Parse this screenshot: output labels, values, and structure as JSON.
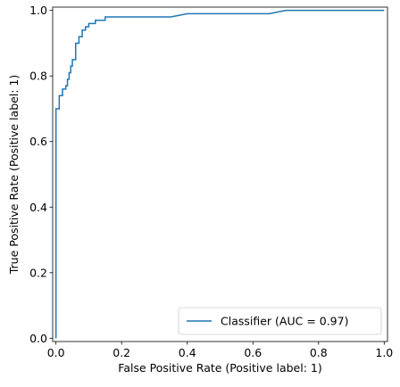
{
  "chart_data": {
    "type": "line",
    "title": "",
    "xlabel": "False Positive Rate (Positive label: 1)",
    "ylabel": "True Positive Rate (Positive label: 1)",
    "xlim": [
      -0.01,
      1.01
    ],
    "ylim": [
      -0.01,
      1.01
    ],
    "xticks": [
      "0.0",
      "0.2",
      "0.4",
      "0.6",
      "0.8",
      "1.0"
    ],
    "yticks": [
      "0.0",
      "0.2",
      "0.4",
      "0.6",
      "0.8",
      "1.0"
    ],
    "grid": false,
    "legend_position": "lower-right",
    "series": [
      {
        "name": "Classifier (AUC = 0.97)",
        "color": "#1f77b4",
        "x": [
          0.0,
          0.0,
          0.01,
          0.01,
          0.02,
          0.02,
          0.03,
          0.03,
          0.035,
          0.035,
          0.04,
          0.04,
          0.045,
          0.045,
          0.05,
          0.05,
          0.06,
          0.06,
          0.07,
          0.07,
          0.08,
          0.08,
          0.09,
          0.09,
          0.1,
          0.1,
          0.12,
          0.12,
          0.15,
          0.15,
          0.35,
          0.4,
          0.4,
          0.65,
          0.7,
          0.7,
          1.0
        ],
        "y": [
          0.0,
          0.7,
          0.7,
          0.74,
          0.74,
          0.76,
          0.76,
          0.77,
          0.77,
          0.79,
          0.79,
          0.81,
          0.81,
          0.83,
          0.83,
          0.85,
          0.85,
          0.9,
          0.9,
          0.92,
          0.92,
          0.94,
          0.94,
          0.95,
          0.95,
          0.96,
          0.96,
          0.97,
          0.97,
          0.98,
          0.98,
          0.99,
          0.99,
          0.99,
          1.0,
          1.0,
          1.0
        ]
      }
    ]
  }
}
